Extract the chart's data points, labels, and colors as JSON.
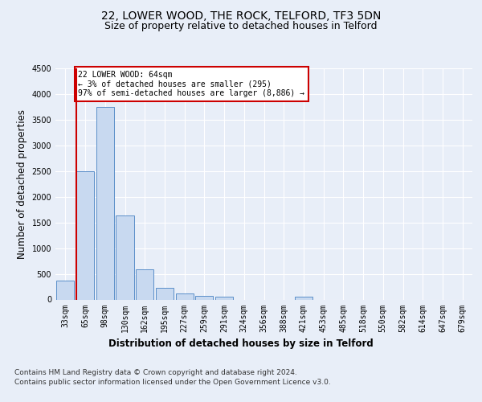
{
  "title": "22, LOWER WOOD, THE ROCK, TELFORD, TF3 5DN",
  "subtitle": "Size of property relative to detached houses in Telford",
  "xlabel": "Distribution of detached houses by size in Telford",
  "ylabel": "Number of detached properties",
  "categories": [
    "33sqm",
    "65sqm",
    "98sqm",
    "130sqm",
    "162sqm",
    "195sqm",
    "227sqm",
    "259sqm",
    "291sqm",
    "324sqm",
    "356sqm",
    "388sqm",
    "421sqm",
    "453sqm",
    "485sqm",
    "518sqm",
    "550sqm",
    "582sqm",
    "614sqm",
    "647sqm",
    "679sqm"
  ],
  "values": [
    370,
    2500,
    3750,
    1640,
    590,
    230,
    110,
    65,
    50,
    0,
    0,
    0,
    60,
    0,
    0,
    0,
    0,
    0,
    0,
    0,
    0
  ],
  "bar_color": "#c8d9f0",
  "bar_edge_color": "#5b8fc9",
  "vline_color": "#cc0000",
  "annotation_text": "22 LOWER WOOD: 64sqm\n← 3% of detached houses are smaller (295)\n97% of semi-detached houses are larger (8,886) →",
  "annotation_box_color": "#cc0000",
  "ylim": [
    0,
    4500
  ],
  "yticks": [
    0,
    500,
    1000,
    1500,
    2000,
    2500,
    3000,
    3500,
    4000,
    4500
  ],
  "bg_color": "#e8eef8",
  "plot_bg_color": "#e8eef8",
  "footer_line1": "Contains HM Land Registry data © Crown copyright and database right 2024.",
  "footer_line2": "Contains public sector information licensed under the Open Government Licence v3.0.",
  "title_fontsize": 10,
  "subtitle_fontsize": 9,
  "axis_label_fontsize": 8.5,
  "tick_fontsize": 7,
  "footer_fontsize": 6.5
}
